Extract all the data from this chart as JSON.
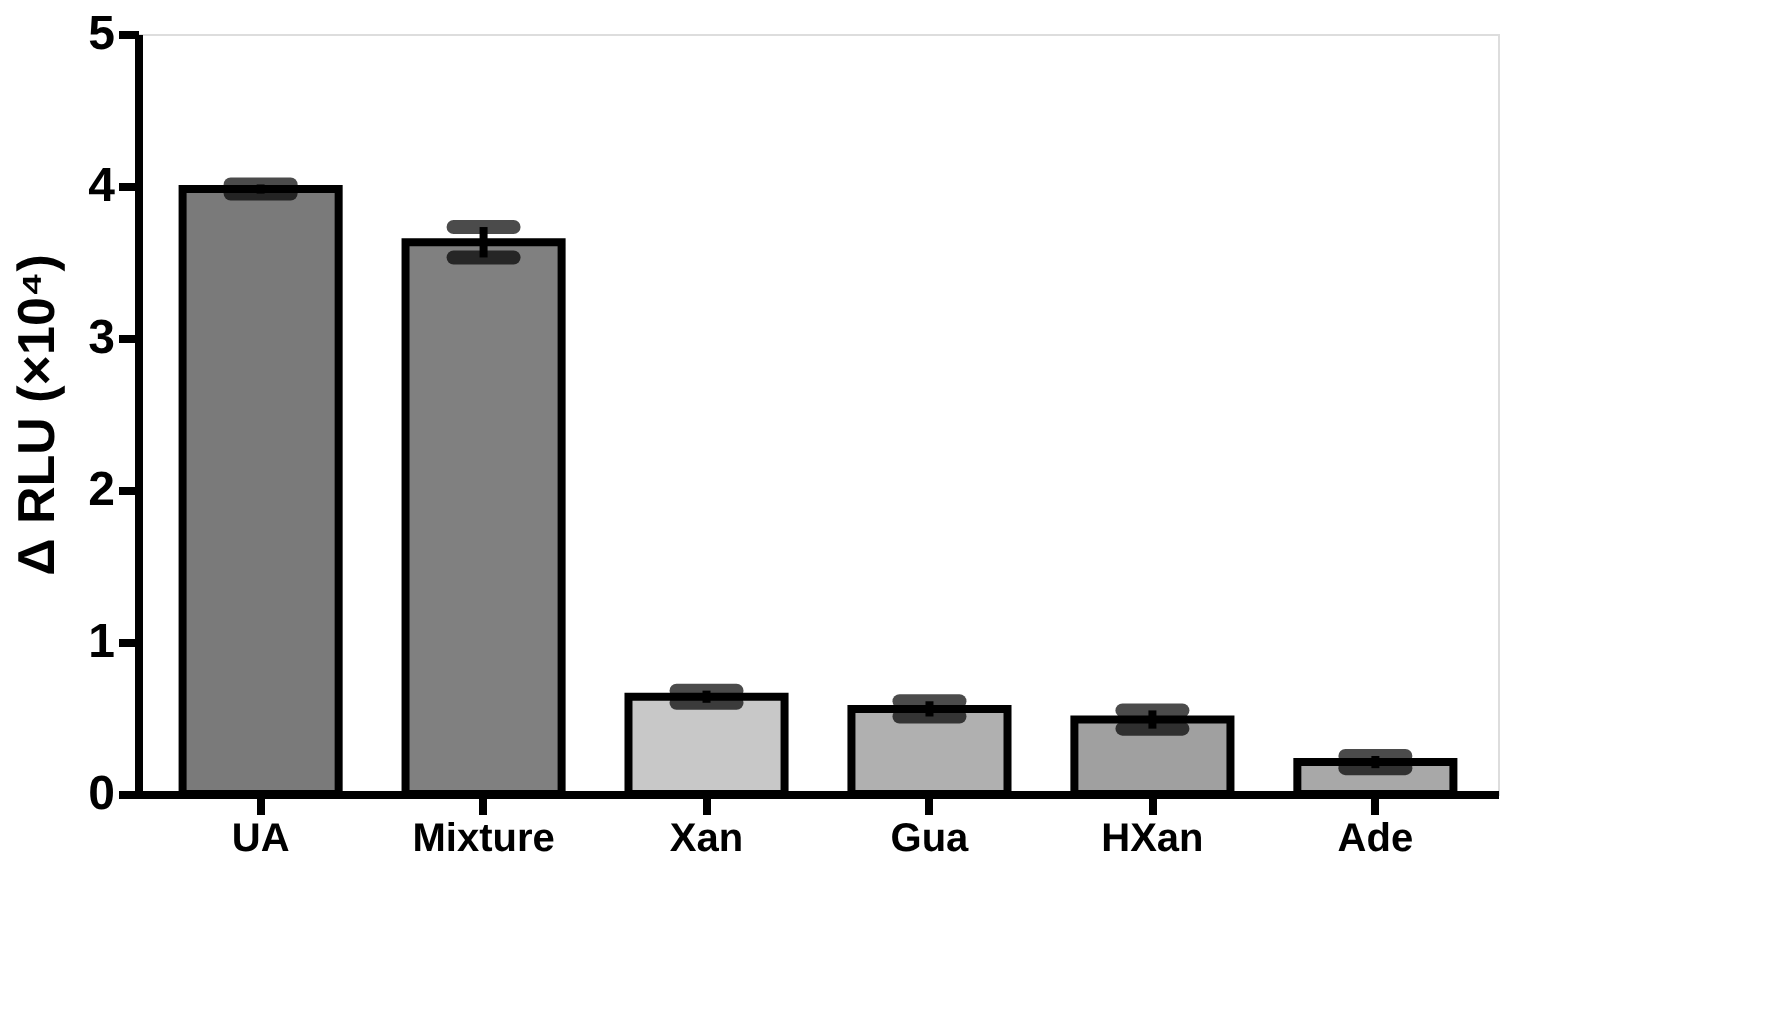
{
  "chart_data": {
    "type": "bar",
    "ylabel": "Δ RLU (×10⁴)",
    "categories": [
      "UA",
      "Mixture",
      "Xan",
      "Gua",
      "HXan",
      "Ade"
    ],
    "values": [
      3.98,
      3.63,
      0.64,
      0.56,
      0.49,
      0.21
    ],
    "errors": [
      0.03,
      0.1,
      0.04,
      0.05,
      0.06,
      0.04
    ],
    "colors": [
      "#7a7a7a",
      "#808080",
      "#c8c8c8",
      "#b0b0b0",
      "#a0a0a0",
      "#a8a8a8"
    ],
    "ylim": [
      0,
      5
    ],
    "yticks": [
      0,
      1,
      2,
      3,
      4,
      5
    ],
    "grid": false
  }
}
